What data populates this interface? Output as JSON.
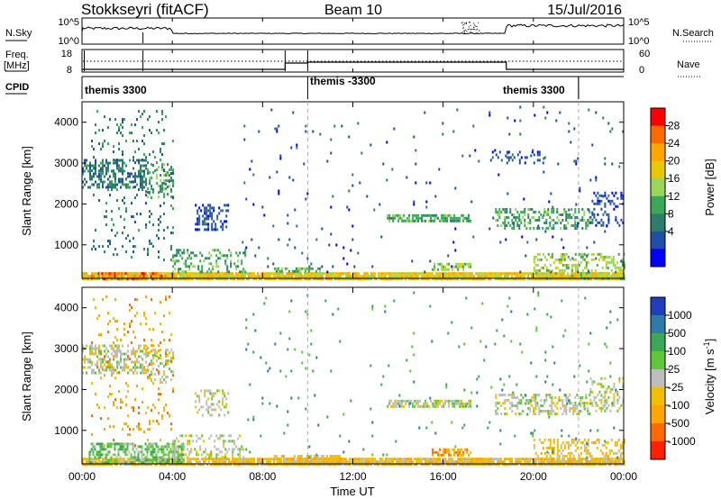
{
  "header": {
    "station": "Stokkseyri (fitACF)",
    "beam": "Beam 10",
    "date": "15/Jul/2016"
  },
  "nsky": {
    "left_label": "N.Sky",
    "left_ticks": [
      "10^5",
      "10^0"
    ],
    "right_ticks": [
      "10^5",
      "10^0"
    ],
    "right_label": "N.Search"
  },
  "freq": {
    "left_label_1": "Freq.",
    "left_label_2": "[MHz]",
    "left_ticks": [
      "18",
      "8"
    ],
    "right_ticks": [
      "60",
      "0"
    ],
    "right_label": "Nave"
  },
  "cpid": {
    "label": "CPID",
    "segments": [
      {
        "start_h": 0.0,
        "end_h": 10.0,
        "name": "themis 3300"
      },
      {
        "start_h": 10.0,
        "end_h": 22.0,
        "name": "themis -3300"
      },
      {
        "start_h": 22.0,
        "end_h": 24.0,
        "name": "themis 3300"
      }
    ],
    "labels": [
      {
        "text": "themis 3300",
        "at_h": 0.1
      },
      {
        "text": "themis -3300",
        "at_h": 10.1
      },
      {
        "text": "themis 3300",
        "at_h": 18.6
      }
    ]
  },
  "power_scale": {
    "title": "Power [dB]",
    "ticks": [
      "28",
      "24",
      "20",
      "16",
      "12",
      "8",
      "4"
    ],
    "colors": [
      "#ff0000",
      "#ff6a00",
      "#ffa500",
      "#e8c800",
      "#9ad65a",
      "#3aa857",
      "#2e7d6a",
      "#1f4fa8",
      "#0000ff"
    ]
  },
  "velocity_scale": {
    "title": "Velocity [m s^-1]",
    "ticks": [
      "1000",
      "500",
      "100",
      "25",
      "-25",
      "-100",
      "-500",
      "-1000"
    ],
    "colors": [
      "#1f3fbf",
      "#2f7aa8",
      "#3aa857",
      "#5ec83a",
      "#bdbdbd",
      "#f0c000",
      "#ffa500",
      "#ff6a00",
      "#ff2000"
    ]
  },
  "chart_data": {
    "type": "heatmap",
    "x_axis": {
      "label": "Time UT",
      "range_h": [
        0,
        24
      ],
      "ticks": [
        "00:00",
        "04:00",
        "08:00",
        "12:00",
        "16:00",
        "20:00",
        "00:00"
      ]
    },
    "y_axis": {
      "label": "Slant Range [km]",
      "range_km": [
        180,
        4500
      ],
      "ticks": [
        "1000",
        "2000",
        "3000",
        "4000"
      ]
    },
    "dashed_time_markers_h": [
      10.0,
      22.0
    ],
    "panels": [
      {
        "name": "Power",
        "regions": [
          {
            "t": [
              0.0,
              24.0
            ],
            "r": [
              180,
              330
            ],
            "level": 3,
            "density": 0.9
          },
          {
            "t": [
              0.3,
              4.0
            ],
            "r": [
              180,
              330
            ],
            "level": 1,
            "density": 0.5
          },
          {
            "t": [
              0.0,
              2.8
            ],
            "r": [
              2400,
              3100
            ],
            "level": 6,
            "density": 0.5
          },
          {
            "t": [
              2.8,
              4.0
            ],
            "r": [
              2200,
              3000
            ],
            "level": 5,
            "density": 0.3
          },
          {
            "t": [
              0.4,
              4.0
            ],
            "r": [
              600,
              4300
            ],
            "level": 6,
            "density": 0.08
          },
          {
            "t": [
              4.0,
              7.2
            ],
            "r": [
              330,
              900
            ],
            "level": 5,
            "density": 0.3
          },
          {
            "t": [
              5.0,
              6.5
            ],
            "r": [
              1400,
              2000
            ],
            "level": 7,
            "density": 0.35
          },
          {
            "t": [
              8.5,
              10.5
            ],
            "r": [
              330,
              450
            ],
            "level": 5,
            "density": 0.5
          },
          {
            "t": [
              13.5,
              17.2
            ],
            "r": [
              1600,
              1750
            ],
            "level": 5,
            "density": 0.7
          },
          {
            "t": [
              15.5,
              17.2
            ],
            "r": [
              420,
              560
            ],
            "level": 4,
            "density": 0.5
          },
          {
            "t": [
              18.3,
              22.5
            ],
            "r": [
              1400,
              1900
            ],
            "level": 5,
            "density": 0.45
          },
          {
            "t": [
              22.5,
              24.0
            ],
            "r": [
              1500,
              2300
            ],
            "level": 7,
            "density": 0.3
          },
          {
            "t": [
              20.0,
              24.0
            ],
            "r": [
              200,
              800
            ],
            "level": 4,
            "density": 0.35
          },
          {
            "t": [
              18.0,
              20.5
            ],
            "r": [
              3000,
              3300
            ],
            "level": 7,
            "density": 0.2
          },
          {
            "t": [
              7.0,
              24.0
            ],
            "r": [
              330,
              4400
            ],
            "level": 7,
            "density": 0.015
          }
        ]
      },
      {
        "name": "Velocity",
        "regions": [
          {
            "t": [
              0.0,
              24.0
            ],
            "r": [
              180,
              330
            ],
            "level": 5,
            "density": 0.9
          },
          {
            "t": [
              0.3,
              4.5
            ],
            "r": [
              180,
              700
            ],
            "level": 3,
            "density": 0.6
          },
          {
            "t": [
              0.0,
              2.8
            ],
            "r": [
              2400,
              3100
            ],
            "level": 4,
            "density": 0.5
          },
          {
            "t": [
              2.8,
              4.0
            ],
            "r": [
              2200,
              3000
            ],
            "level": 4,
            "density": 0.3
          },
          {
            "t": [
              0.4,
              4.0
            ],
            "r": [
              600,
              4300
            ],
            "level": 6,
            "density": 0.08
          },
          {
            "t": [
              4.0,
              7.2
            ],
            "r": [
              330,
              900
            ],
            "level": 4,
            "density": 0.3
          },
          {
            "t": [
              5.0,
              6.5
            ],
            "r": [
              1400,
              2000
            ],
            "level": 4,
            "density": 0.35
          },
          {
            "t": [
              8.5,
              11.5
            ],
            "r": [
              180,
              400
            ],
            "level": 5,
            "density": 0.7
          },
          {
            "t": [
              13.5,
              17.2
            ],
            "r": [
              1600,
              1750
            ],
            "level": 4,
            "density": 0.7
          },
          {
            "t": [
              15.5,
              17.2
            ],
            "r": [
              420,
              560
            ],
            "level": 6,
            "density": 0.6
          },
          {
            "t": [
              18.3,
              22.5
            ],
            "r": [
              1400,
              1900
            ],
            "level": 4,
            "density": 0.45
          },
          {
            "t": [
              22.5,
              24.0
            ],
            "r": [
              1500,
              2300
            ],
            "level": 4,
            "density": 0.3
          },
          {
            "t": [
              20.0,
              24.0
            ],
            "r": [
              200,
              800
            ],
            "level": 5,
            "density": 0.35
          },
          {
            "t": [
              7.0,
              24.0
            ],
            "r": [
              330,
              4400
            ],
            "level": 2,
            "density": 0.015
          }
        ]
      }
    ]
  }
}
